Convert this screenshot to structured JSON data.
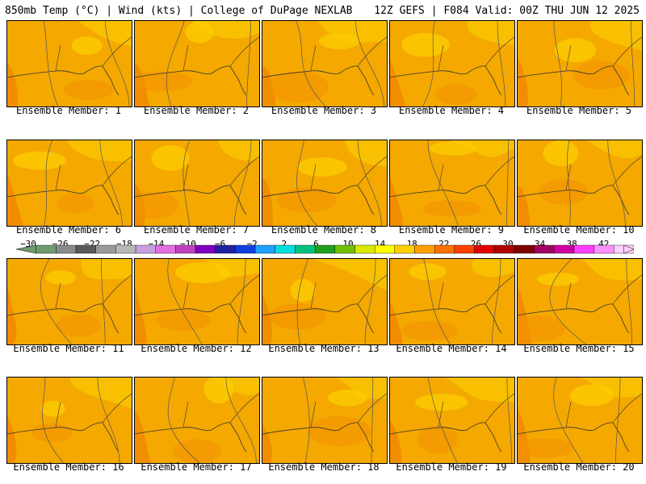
{
  "header": {
    "left": "850mb Temp (°C) | Wind (kts) | College of DuPage NEXLAB",
    "right": "12Z GEFS | F084 Valid: 00Z THU JUN 12 2025"
  },
  "members": [
    {
      "label": "Ensemble Member: 1"
    },
    {
      "label": "Ensemble Member: 2"
    },
    {
      "label": "Ensemble Member: 3"
    },
    {
      "label": "Ensemble Member: 4"
    },
    {
      "label": "Ensemble Member: 5"
    },
    {
      "label": "Ensemble Member: 6"
    },
    {
      "label": "Ensemble Member: 7"
    },
    {
      "label": "Ensemble Member: 8"
    },
    {
      "label": "Ensemble Member: 9"
    },
    {
      "label": "Ensemble Member: 10"
    },
    {
      "label": "Ensemble Member: 11"
    },
    {
      "label": "Ensemble Member: 12"
    },
    {
      "label": "Ensemble Member: 13"
    },
    {
      "label": "Ensemble Member: 14"
    },
    {
      "label": "Ensemble Member: 15"
    },
    {
      "label": "Ensemble Member: 16"
    },
    {
      "label": "Ensemble Member: 17"
    },
    {
      "label": "Ensemble Member: 18"
    },
    {
      "label": "Ensemble Member: 19"
    },
    {
      "label": "Ensemble Member: 20"
    }
  ],
  "colorbar": {
    "tick_labels": [
      "-30",
      "-26",
      "-22",
      "-18",
      "-14",
      "-10",
      "-6",
      "-2",
      "2",
      "6",
      "10",
      "14",
      "18",
      "22",
      "26",
      "30",
      "34",
      "38",
      "42"
    ],
    "colors": [
      "#6e9c6e",
      "#8a8a8a",
      "#5a5a5a",
      "#9a9a9a",
      "#b8b8b8",
      "#c8a0e0",
      "#e070e0",
      "#c040c0",
      "#8000c0",
      "#2020a0",
      "#1040e0",
      "#20a0ff",
      "#00e0e0",
      "#00c080",
      "#20a020",
      "#70c000",
      "#d8e800",
      "#ffff00",
      "#ffd000",
      "#ffa000",
      "#ff7000",
      "#ff4000",
      "#e00000",
      "#b00000",
      "#800000",
      "#a00060",
      "#d000a0",
      "#ff40ff",
      "#ff90ff",
      "#ffd0ff"
    ]
  }
}
